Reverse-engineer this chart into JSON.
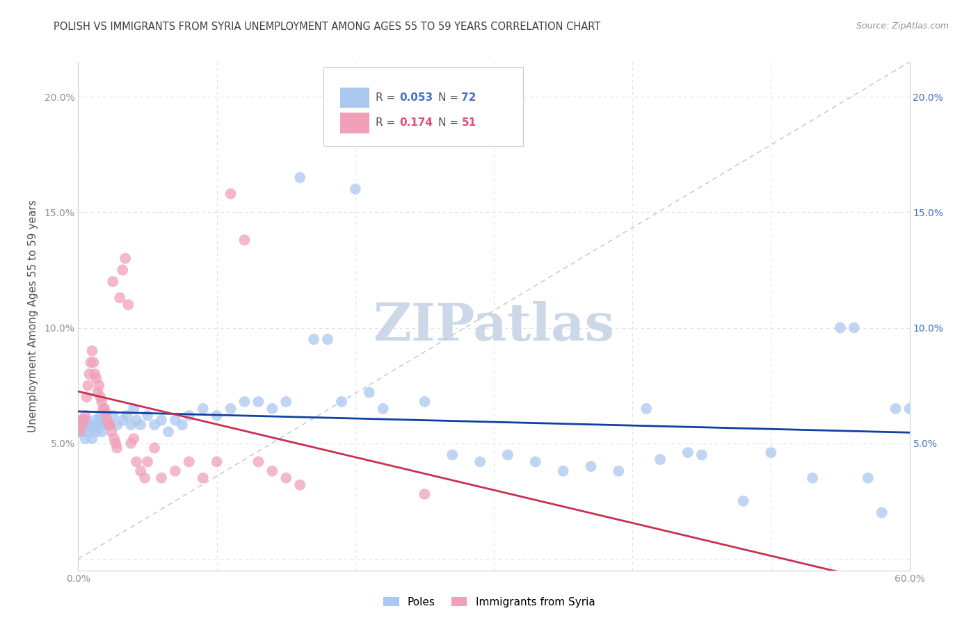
{
  "title": "POLISH VS IMMIGRANTS FROM SYRIA UNEMPLOYMENT AMONG AGES 55 TO 59 YEARS CORRELATION CHART",
  "source": "Source: ZipAtlas.com",
  "ylabel": "Unemployment Among Ages 55 to 59 years",
  "xlim": [
    0.0,
    0.6
  ],
  "ylim": [
    -0.005,
    0.215
  ],
  "xticks": [
    0.0,
    0.1,
    0.2,
    0.3,
    0.4,
    0.5,
    0.6
  ],
  "xticklabels": [
    "0.0%",
    "",
    "",
    "",
    "",
    "",
    "60.0%"
  ],
  "yticks": [
    0.0,
    0.05,
    0.1,
    0.15,
    0.2
  ],
  "yticklabels": [
    "",
    "5.0%",
    "10.0%",
    "15.0%",
    "20.0%"
  ],
  "right_yticks": [
    0.05,
    0.1,
    0.15,
    0.2
  ],
  "right_yticklabels": [
    "5.0%",
    "10.0%",
    "15.0%",
    "20.0%"
  ],
  "poles_color": "#aac8f0",
  "syria_color": "#f0a0b8",
  "poles_trend_color": "#1040a0",
  "syria_trend_color": "#c83050",
  "diag_line_color": "#c8c0d0",
  "grid_color": "#e0e0e0",
  "title_color": "#404040",
  "axis_label_color": "#505050",
  "tick_color": "#909090",
  "right_tick_color": "#4472c4",
  "watermark_color": "#ccd8e8",
  "legend_text_blue": "#4472c4",
  "legend_text_pink": "#e05070",
  "poles_x": [
    0.001,
    0.002,
    0.003,
    0.004,
    0.005,
    0.006,
    0.007,
    0.008,
    0.01,
    0.011,
    0.012,
    0.013,
    0.014,
    0.015,
    0.016,
    0.017,
    0.018,
    0.019,
    0.02,
    0.022,
    0.025,
    0.028,
    0.032,
    0.035,
    0.038,
    0.04,
    0.042,
    0.045,
    0.05,
    0.055,
    0.06,
    0.065,
    0.07,
    0.075,
    0.08,
    0.09,
    0.1,
    0.11,
    0.12,
    0.13,
    0.14,
    0.15,
    0.16,
    0.17,
    0.18,
    0.19,
    0.2,
    0.21,
    0.22,
    0.25,
    0.27,
    0.29,
    0.31,
    0.33,
    0.35,
    0.37,
    0.39,
    0.42,
    0.45,
    0.48,
    0.5,
    0.53,
    0.55,
    0.56,
    0.57,
    0.58,
    0.59,
    0.6,
    0.41,
    0.44
  ],
  "poles_y": [
    0.055,
    0.058,
    0.06,
    0.055,
    0.052,
    0.06,
    0.058,
    0.055,
    0.052,
    0.057,
    0.06,
    0.055,
    0.058,
    0.06,
    0.062,
    0.055,
    0.058,
    0.062,
    0.06,
    0.058,
    0.062,
    0.058,
    0.06,
    0.062,
    0.058,
    0.065,
    0.06,
    0.058,
    0.062,
    0.058,
    0.06,
    0.055,
    0.06,
    0.058,
    0.062,
    0.065,
    0.062,
    0.065,
    0.068,
    0.068,
    0.065,
    0.068,
    0.165,
    0.095,
    0.095,
    0.068,
    0.16,
    0.072,
    0.065,
    0.068,
    0.045,
    0.042,
    0.045,
    0.042,
    0.038,
    0.04,
    0.038,
    0.043,
    0.045,
    0.025,
    0.046,
    0.035,
    0.1,
    0.1,
    0.035,
    0.02,
    0.065,
    0.065,
    0.065,
    0.046
  ],
  "syria_x": [
    0.001,
    0.002,
    0.003,
    0.004,
    0.005,
    0.006,
    0.007,
    0.008,
    0.009,
    0.01,
    0.011,
    0.012,
    0.013,
    0.014,
    0.015,
    0.016,
    0.017,
    0.018,
    0.019,
    0.02,
    0.021,
    0.022,
    0.023,
    0.024,
    0.025,
    0.026,
    0.027,
    0.028,
    0.03,
    0.032,
    0.034,
    0.036,
    0.038,
    0.04,
    0.042,
    0.045,
    0.048,
    0.05,
    0.055,
    0.06,
    0.07,
    0.08,
    0.09,
    0.1,
    0.11,
    0.12,
    0.13,
    0.14,
    0.15,
    0.16,
    0.25
  ],
  "syria_y": [
    0.055,
    0.06,
    0.058,
    0.06,
    0.062,
    0.07,
    0.075,
    0.08,
    0.085,
    0.09,
    0.085,
    0.08,
    0.078,
    0.072,
    0.075,
    0.07,
    0.068,
    0.065,
    0.065,
    0.063,
    0.06,
    0.058,
    0.058,
    0.055,
    0.12,
    0.052,
    0.05,
    0.048,
    0.113,
    0.125,
    0.13,
    0.11,
    0.05,
    0.052,
    0.042,
    0.038,
    0.035,
    0.042,
    0.048,
    0.035,
    0.038,
    0.042,
    0.035,
    0.042,
    0.158,
    0.138,
    0.042,
    0.038,
    0.035,
    0.032,
    0.028
  ]
}
